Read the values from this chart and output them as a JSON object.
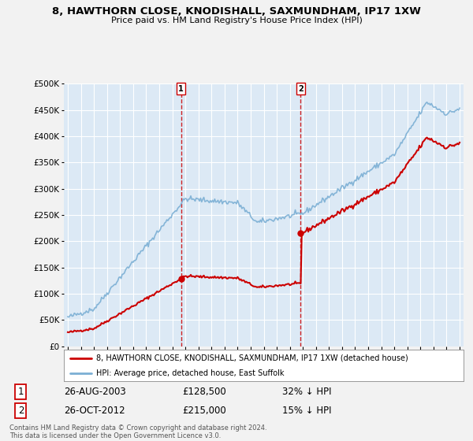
{
  "title": "8, HAWTHORN CLOSE, KNODISHALL, SAXMUNDHAM, IP17 1XW",
  "subtitle": "Price paid vs. HM Land Registry's House Price Index (HPI)",
  "sale1_date": "26-AUG-2003",
  "sale1_price": 128500,
  "sale1_label": "32% ↓ HPI",
  "sale2_date": "26-OCT-2012",
  "sale2_price": 215000,
  "sale2_label": "15% ↓ HPI",
  "legend_entry1": "8, HAWTHORN CLOSE, KNODISHALL, SAXMUNDHAM, IP17 1XW (detached house)",
  "legend_entry2": "HPI: Average price, detached house, East Suffolk",
  "footer": "Contains HM Land Registry data © Crown copyright and database right 2024.\nThis data is licensed under the Open Government Licence v3.0.",
  "hpi_color": "#7bafd4",
  "price_color": "#cc0000",
  "background_color": "#dce9f5",
  "fig_bg_color": "#f2f2f2",
  "ylim": [
    0,
    500000
  ],
  "yticks": [
    0,
    50000,
    100000,
    150000,
    200000,
    250000,
    300000,
    350000,
    400000,
    450000,
    500000
  ],
  "ytick_labels": [
    "£0",
    "£50K",
    "£100K",
    "£150K",
    "£200K",
    "£250K",
    "£300K",
    "£350K",
    "£400K",
    "£450K",
    "£500K"
  ]
}
